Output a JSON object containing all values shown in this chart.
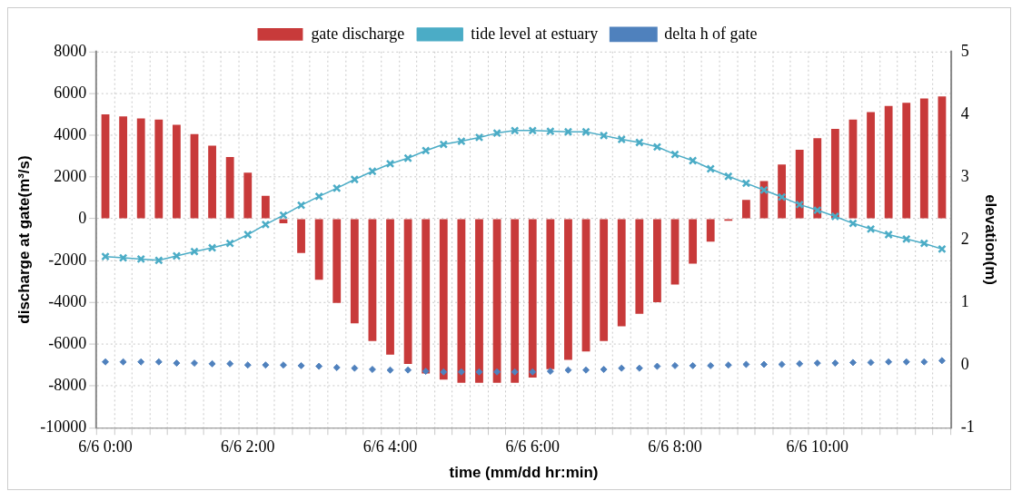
{
  "chart_data": {
    "type": "bar",
    "xlabel": "time (mm/dd hr:min)",
    "ylabel": "discharge at gate(m³/s)",
    "y2label": "elevation(m)",
    "categories": [
      "6/6 0:00",
      null,
      null,
      null,
      null,
      null,
      null,
      null,
      "6/6 2:00",
      null,
      null,
      null,
      null,
      null,
      null,
      null,
      "6/6 4:00",
      null,
      null,
      null,
      null,
      null,
      null,
      null,
      "6/6 6:00",
      null,
      null,
      null,
      null,
      null,
      null,
      null,
      "6/6 8:00",
      null,
      null,
      null,
      null,
      null,
      null,
      null,
      "6/6 10:00",
      null,
      null,
      null,
      null,
      null,
      null,
      null
    ],
    "series": [
      {
        "name": "gate discharge",
        "color": "#c83a3a",
        "values": [
          5000,
          4900,
          4800,
          4750,
          4500,
          4050,
          3500,
          2950,
          2200,
          1100,
          -220,
          -1640,
          -2920,
          -4030,
          -5000,
          -5850,
          -6500,
          -6950,
          -7400,
          -7700,
          -7850,
          -7850,
          -7850,
          -7850,
          -7600,
          -7200,
          -6750,
          -6350,
          -5850,
          -5150,
          -4550,
          -4000,
          -3150,
          -2150,
          -1100,
          -100,
          900,
          1800,
          2600,
          3300,
          3850,
          4300,
          4750,
          5100,
          5400,
          5550,
          5750,
          5850
        ]
      },
      {
        "name": "tide level at estuary",
        "type": "line",
        "axis": "y2",
        "marker": "cross",
        "color": "#4bacc6",
        "values": [
          1.73,
          1.71,
          1.69,
          1.67,
          1.74,
          1.81,
          1.87,
          1.94,
          2.08,
          2.24,
          2.39,
          2.55,
          2.69,
          2.82,
          2.96,
          3.09,
          3.21,
          3.3,
          3.42,
          3.52,
          3.57,
          3.63,
          3.7,
          3.74,
          3.74,
          3.73,
          3.72,
          3.72,
          3.66,
          3.6,
          3.55,
          3.48,
          3.36,
          3.26,
          3.13,
          3.01,
          2.9,
          2.79,
          2.68,
          2.56,
          2.47,
          2.37,
          2.26,
          2.17,
          2.08,
          2.01,
          1.94,
          1.85
        ]
      },
      {
        "name": "delta h of gate",
        "type": "scatter",
        "axis": "y2",
        "marker": "diamond",
        "color": "#4f81bd",
        "values": [
          0.05,
          0.05,
          0.05,
          0.05,
          0.03,
          0.03,
          0.02,
          0.02,
          0,
          0,
          0,
          -0.01,
          -0.02,
          -0.04,
          -0.05,
          -0.07,
          -0.08,
          -0.08,
          -0.1,
          -0.11,
          -0.11,
          -0.11,
          -0.11,
          -0.11,
          -0.11,
          -0.1,
          -0.08,
          -0.08,
          -0.07,
          -0.05,
          -0.05,
          -0.02,
          -0.01,
          -0.01,
          -0.01,
          0,
          0.01,
          0.01,
          0.01,
          0.02,
          0.03,
          0.03,
          0.04,
          0.04,
          0.05,
          0.05,
          0.05,
          0.07
        ]
      }
    ],
    "ylim": [
      -10000,
      8000
    ],
    "yticks": [
      -10000,
      -8000,
      -6000,
      -4000,
      -2000,
      0,
      2000,
      4000,
      6000,
      8000
    ],
    "y2lim": [
      -1,
      5
    ],
    "y2ticks": [
      -1,
      0,
      1,
      2,
      3,
      4,
      5
    ],
    "grid": true,
    "legend": "top"
  }
}
